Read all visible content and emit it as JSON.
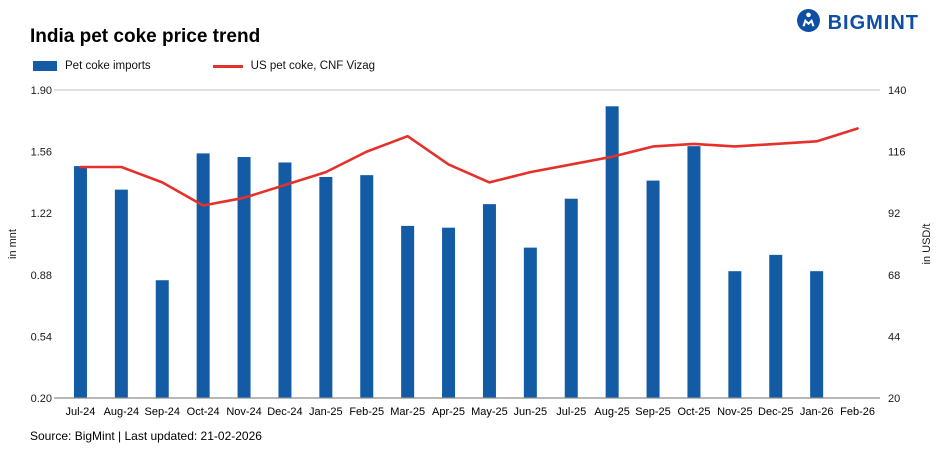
{
  "logo": {
    "text": "BIGMINT"
  },
  "title": "India pet coke price trend",
  "legend": [
    {
      "label": "Pet coke imports"
    },
    {
      "label": "US pet coke, CNF Vizag"
    }
  ],
  "footer": {
    "text": "Source: BigMint | Last updated: 21-02-2026"
  },
  "colors": {
    "bar": "#135ba5",
    "line": "#e5312b",
    "logo": "#0e4ea3",
    "grid_top": "#c2c2c2",
    "axis_bottom": "#8c8c8c"
  },
  "chart_data": {
    "type": "bar",
    "subtype": "bar+line dual axis",
    "title": "India pet coke price trend",
    "categories": [
      "Jul-24",
      "Aug-24",
      "Sep-24",
      "Oct-24",
      "Nov-24",
      "Dec-24",
      "Jan-25",
      "Feb-25",
      "Mar-25",
      "Apr-25",
      "May-25",
      "Jun-25",
      "Jul-25",
      "Aug-25",
      "Sep-25",
      "Oct-25",
      "Nov-25",
      "Dec-25",
      "Jan-26",
      "Feb-26"
    ],
    "series": [
      {
        "name": "Pet coke imports",
        "type": "bar",
        "axis": "left",
        "unit": "mnt",
        "color": "#135ba5",
        "values": [
          1.48,
          1.35,
          0.85,
          1.55,
          1.53,
          1.5,
          1.42,
          1.43,
          1.15,
          1.14,
          1.27,
          1.03,
          1.3,
          1.81,
          1.4,
          1.59,
          0.9,
          0.99,
          0.9,
          null
        ]
      },
      {
        "name": "US pet coke, CNF Vizag",
        "type": "line",
        "axis": "right",
        "unit": "USD/t",
        "color": "#e5312b",
        "values": [
          110,
          110,
          104,
          95,
          98,
          103,
          108,
          116,
          122,
          111,
          104,
          108,
          111,
          114,
          118,
          119,
          118,
          119,
          120,
          125
        ]
      }
    ],
    "left_axis": {
      "label": "in mnt",
      "min": 0.2,
      "max": 1.9,
      "ticks": [
        0.2,
        0.54,
        0.88,
        1.22,
        1.56,
        1.9
      ]
    },
    "right_axis": {
      "label": "in USD/t",
      "min": 20,
      "max": 140,
      "ticks": [
        20,
        44,
        68,
        92,
        116,
        140
      ]
    },
    "grid": "top and bottom boundary lines only",
    "legend_position": "top-left under title"
  }
}
